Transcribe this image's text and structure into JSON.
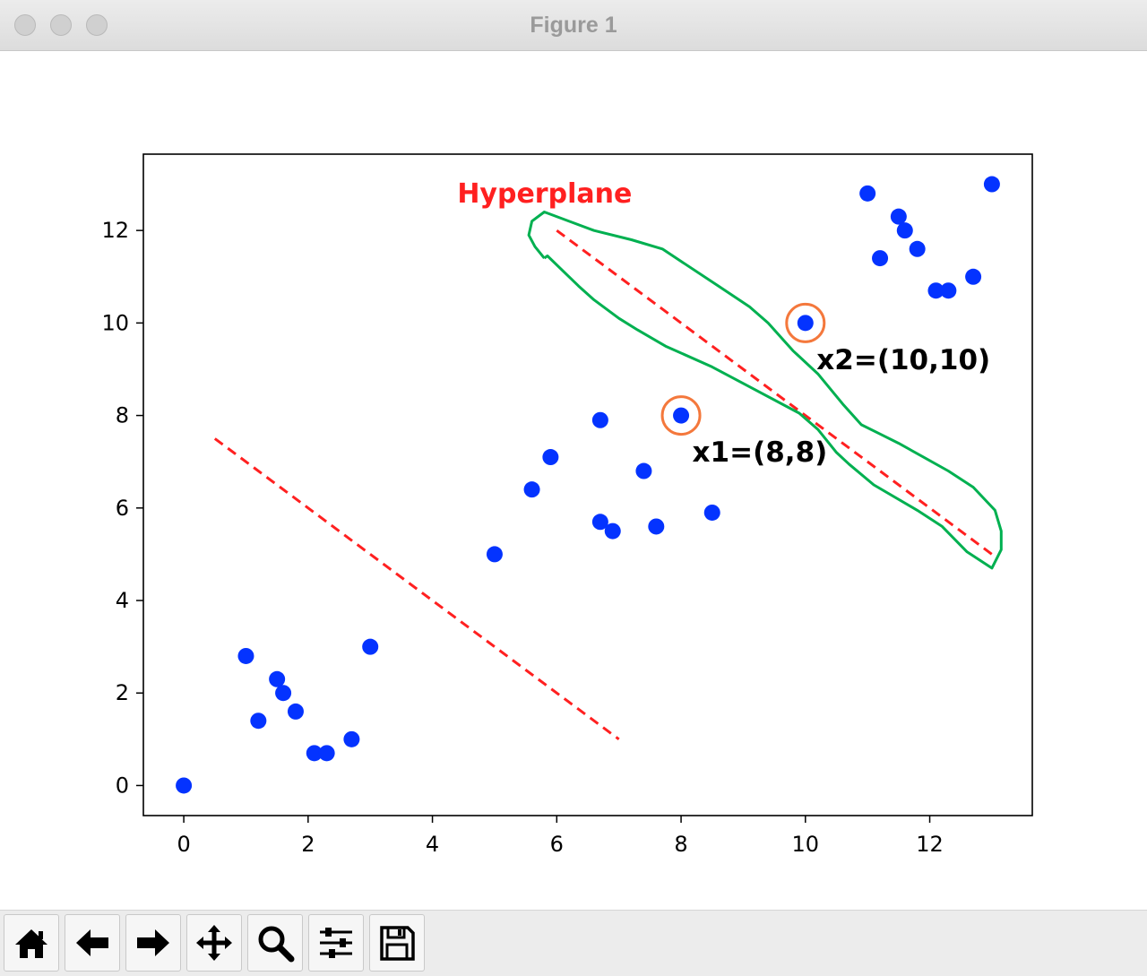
{
  "window": {
    "title": "Figure 1"
  },
  "toolbar": {
    "buttons": [
      "home-icon",
      "back-arrow-icon",
      "forward-arrow-icon",
      "pan-icon",
      "zoom-icon",
      "configure-subplots-icon",
      "save-icon"
    ]
  },
  "chart_data": {
    "type": "scatter",
    "xlim": [
      -0.65,
      13.65
    ],
    "ylim": [
      -0.65,
      13.65
    ],
    "xticks": [
      0,
      2,
      4,
      6,
      8,
      10,
      12
    ],
    "yticks": [
      0,
      2,
      4,
      6,
      8,
      10,
      12
    ],
    "xtick_labels": [
      "0",
      "2",
      "4",
      "6",
      "8",
      "10",
      "12"
    ],
    "ytick_labels": [
      "0",
      "2",
      "4",
      "6",
      "8",
      "10",
      "12"
    ],
    "grid": false,
    "point_color": "#0433ff",
    "points": [
      {
        "x": 0,
        "y": 0
      },
      {
        "x": 1.0,
        "y": 2.8
      },
      {
        "x": 1.2,
        "y": 1.4
      },
      {
        "x": 1.5,
        "y": 2.3
      },
      {
        "x": 1.6,
        "y": 2.0
      },
      {
        "x": 1.8,
        "y": 1.6
      },
      {
        "x": 2.1,
        "y": 0.7
      },
      {
        "x": 2.3,
        "y": 0.7
      },
      {
        "x": 2.7,
        "y": 1.0
      },
      {
        "x": 3.0,
        "y": 3.0
      },
      {
        "x": 5.0,
        "y": 5.0
      },
      {
        "x": 5.6,
        "y": 6.4
      },
      {
        "x": 5.9,
        "y": 7.1
      },
      {
        "x": 6.7,
        "y": 7.9
      },
      {
        "x": 6.7,
        "y": 5.7
      },
      {
        "x": 6.9,
        "y": 5.5
      },
      {
        "x": 7.4,
        "y": 6.8
      },
      {
        "x": 7.6,
        "y": 5.6
      },
      {
        "x": 8.0,
        "y": 8.0
      },
      {
        "x": 8.5,
        "y": 5.9
      },
      {
        "x": 10.0,
        "y": 10.0
      },
      {
        "x": 11.0,
        "y": 12.8
      },
      {
        "x": 11.2,
        "y": 11.4
      },
      {
        "x": 11.5,
        "y": 12.3
      },
      {
        "x": 11.6,
        "y": 12.0
      },
      {
        "x": 11.8,
        "y": 11.6
      },
      {
        "x": 12.1,
        "y": 10.7
      },
      {
        "x": 12.3,
        "y": 10.7
      },
      {
        "x": 12.7,
        "y": 11.0
      },
      {
        "x": 13.0,
        "y": 13.0
      }
    ],
    "dashed_lines": [
      {
        "x1": 0.5,
        "y1": 7.5,
        "x2": 7.0,
        "y2": 1.0,
        "color": "#ff2020"
      },
      {
        "x1": 6.0,
        "y1": 12.0,
        "x2": 13.0,
        "y2": 5.0,
        "color": "#ff2020"
      }
    ],
    "highlighted_points": [
      {
        "x": 8,
        "y": 8,
        "label": "x1=(8,8)"
      },
      {
        "x": 10,
        "y": 10,
        "label": "x2=(10,10)"
      }
    ],
    "annotations": {
      "hyperplane": "Hyperplane",
      "x1": "x1=(8,8)",
      "x2": "x2=(10,10)"
    },
    "colors": {
      "hyperplane_text": "#ff2020",
      "highlight_circle": "#f4783c",
      "outline": "#00b050"
    }
  }
}
